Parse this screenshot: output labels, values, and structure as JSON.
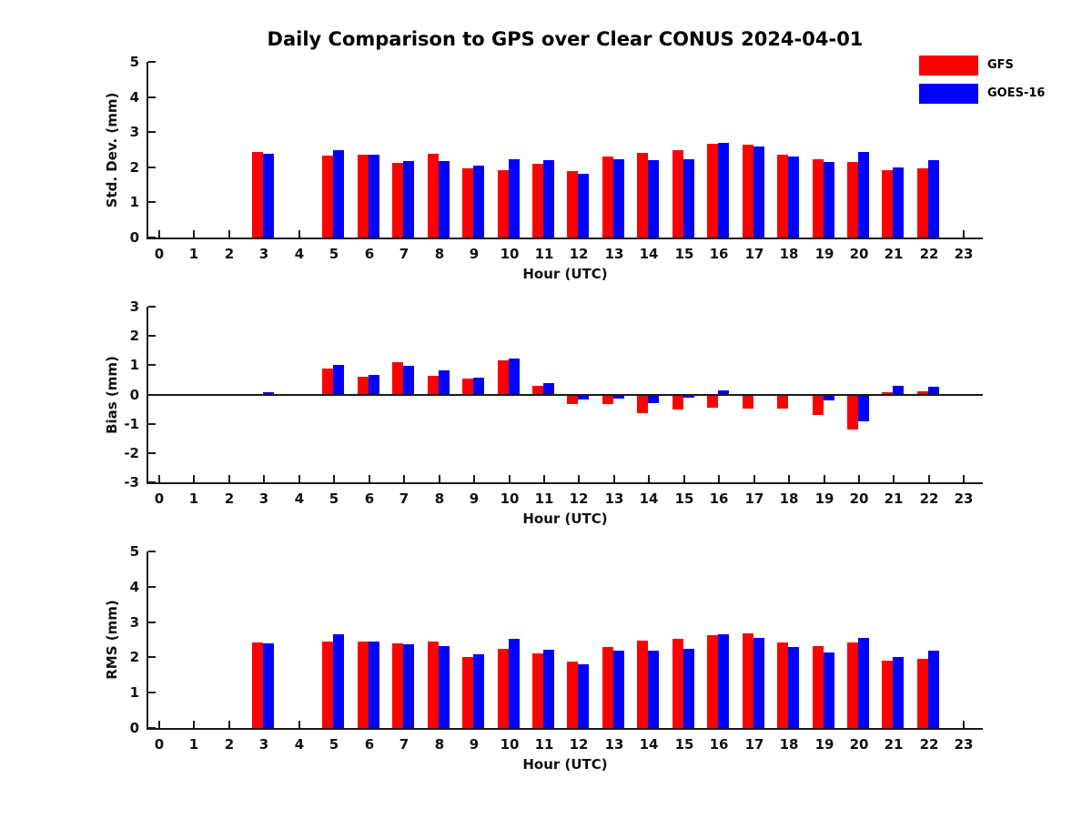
{
  "title": "Daily Comparison to GPS over Clear CONUS 2024-04-01",
  "legend": [
    {
      "label": "GFS",
      "color": "#ff0000"
    },
    {
      "label": "GOES-16",
      "color": "#0000ff"
    }
  ],
  "colors": {
    "gfs": "#ff0000",
    "goes16": "#0000ff",
    "axis": "#1a1a1a"
  },
  "chart_data": [
    {
      "type": "bar",
      "ylabel": "Std. Dev. (mm)",
      "xlabel": "Hour (UTC)",
      "ylim": [
        0,
        5
      ],
      "yticks": [
        0,
        1,
        2,
        3,
        4,
        5
      ],
      "grid": false,
      "legend_position": "top-right-outside",
      "categories": [
        0,
        1,
        2,
        3,
        4,
        5,
        6,
        7,
        8,
        9,
        10,
        11,
        12,
        13,
        14,
        15,
        16,
        17,
        18,
        19,
        20,
        21,
        22,
        23
      ],
      "series": [
        {
          "name": "GFS",
          "color": "#ff0000",
          "values": [
            null,
            null,
            null,
            2.44,
            null,
            2.32,
            2.36,
            2.13,
            2.39,
            1.98,
            1.93,
            2.1,
            1.9,
            2.3,
            2.41,
            2.49,
            2.67,
            2.65,
            2.37,
            2.22,
            2.15,
            1.92,
            1.98,
            null
          ]
        },
        {
          "name": "GOES-16",
          "color": "#0000ff",
          "values": [
            null,
            null,
            null,
            2.38,
            null,
            2.5,
            2.37,
            2.17,
            2.17,
            2.05,
            2.23,
            2.2,
            1.81,
            2.22,
            2.21,
            2.23,
            2.7,
            2.59,
            2.31,
            2.14,
            2.43,
            2.0,
            2.19,
            null
          ]
        }
      ]
    },
    {
      "type": "bar",
      "ylabel": "Bias (mm)",
      "xlabel": "Hour (UTC)",
      "ylim": [
        -3,
        3
      ],
      "yticks": [
        -3,
        -2,
        -1,
        0,
        1,
        2,
        3
      ],
      "zero_line": true,
      "grid": false,
      "categories": [
        0,
        1,
        2,
        3,
        4,
        5,
        6,
        7,
        8,
        9,
        10,
        11,
        12,
        13,
        14,
        15,
        16,
        17,
        18,
        19,
        20,
        21,
        22,
        23
      ],
      "series": [
        {
          "name": "GFS",
          "color": "#ff0000",
          "values": [
            null,
            null,
            null,
            0.02,
            null,
            0.9,
            0.62,
            1.1,
            0.65,
            0.53,
            1.18,
            0.31,
            -0.32,
            -0.3,
            -0.62,
            -0.5,
            -0.42,
            -0.48,
            -0.47,
            -0.68,
            -1.18,
            0.08,
            0.12,
            null
          ]
        },
        {
          "name": "GOES-16",
          "color": "#0000ff",
          "values": [
            null,
            null,
            null,
            0.07,
            null,
            1.02,
            0.67,
            0.99,
            0.82,
            0.56,
            1.23,
            0.39,
            -0.17,
            -0.13,
            -0.28,
            -0.1,
            0.13,
            0.0,
            0.0,
            -0.2,
            -0.9,
            0.3,
            0.25,
            null
          ]
        }
      ]
    },
    {
      "type": "bar",
      "ylabel": "RMS (mm)",
      "xlabel": "Hour (UTC)",
      "ylim": [
        0,
        5
      ],
      "yticks": [
        0,
        1,
        2,
        3,
        4,
        5
      ],
      "grid": false,
      "categories": [
        0,
        1,
        2,
        3,
        4,
        5,
        6,
        7,
        8,
        9,
        10,
        11,
        12,
        13,
        14,
        15,
        16,
        17,
        18,
        19,
        20,
        21,
        22,
        23
      ],
      "series": [
        {
          "name": "GFS",
          "color": "#ff0000",
          "values": [
            null,
            null,
            null,
            2.41,
            null,
            2.46,
            2.44,
            2.39,
            2.46,
            2.0,
            2.25,
            2.12,
            1.88,
            2.3,
            2.47,
            2.52,
            2.64,
            2.68,
            2.41,
            2.33,
            2.41,
            1.91,
            1.97,
            null
          ]
        },
        {
          "name": "GOES-16",
          "color": "#0000ff",
          "values": [
            null,
            null,
            null,
            2.39,
            null,
            2.66,
            2.46,
            2.36,
            2.32,
            2.1,
            2.53,
            2.22,
            1.8,
            2.2,
            2.18,
            2.23,
            2.65,
            2.56,
            2.29,
            2.14,
            2.55,
            2.01,
            2.18,
            null
          ]
        }
      ]
    }
  ]
}
